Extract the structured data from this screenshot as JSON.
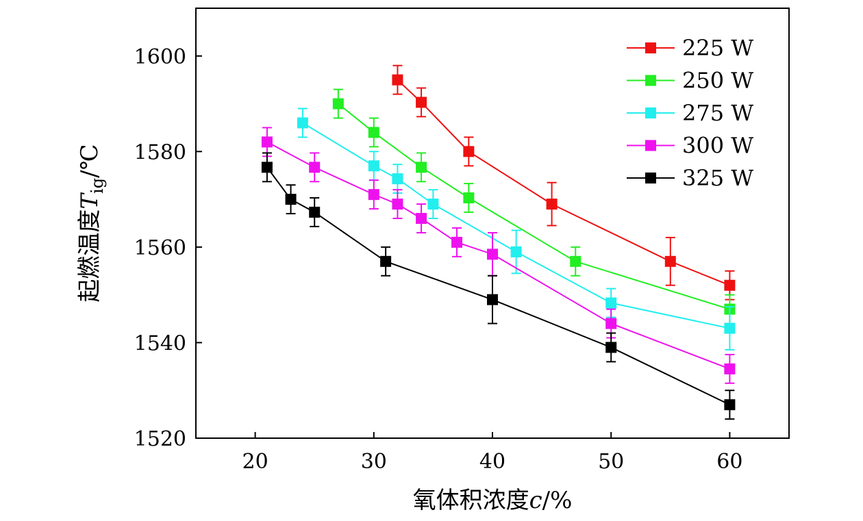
{
  "chart_data": {
    "type": "line",
    "title": "",
    "xlabel": "氧体积浓度c/%",
    "ylabel": "起燃温度T_ig/℃",
    "xlabel_parts": {
      "prefix": "氧体积浓度",
      "var": "c",
      "suffix": "/%"
    },
    "ylabel_parts": {
      "prefix": "起燃温度",
      "var": "T",
      "sub": "ig",
      "suffix": "/℃"
    },
    "xlim": [
      15,
      65
    ],
    "ylim": [
      1520,
      1610
    ],
    "xticks": [
      20,
      30,
      40,
      50,
      60
    ],
    "yticks": [
      1520,
      1540,
      1560,
      1580,
      1600
    ],
    "grid": false,
    "legend_position": "top-right",
    "series": [
      {
        "name": "225 W",
        "color": "#ee1111",
        "x": [
          32,
          34,
          38,
          45,
          55,
          60
        ],
        "y": [
          1595,
          1590.3,
          1580,
          1569,
          1557,
          1552
        ],
        "err": [
          3,
          3,
          3,
          4.5,
          5,
          3
        ]
      },
      {
        "name": "250 W",
        "color": "#22ee22",
        "x": [
          27,
          30,
          34,
          38,
          47,
          60
        ],
        "y": [
          1590,
          1584,
          1576.7,
          1570.3,
          1557,
          1547
        ],
        "err": [
          3,
          3,
          3,
          3,
          3,
          3
        ]
      },
      {
        "name": "275 W",
        "color": "#22eeee",
        "x": [
          24,
          30,
          32,
          35,
          42,
          50,
          60
        ],
        "y": [
          1586,
          1577,
          1574.3,
          1569,
          1559,
          1548.3,
          1543
        ],
        "err": [
          3,
          3,
          3,
          3,
          4.5,
          3,
          4.5
        ]
      },
      {
        "name": "300 W",
        "color": "#ee11ee",
        "x": [
          21,
          25,
          30,
          32,
          34,
          37,
          40,
          50,
          60
        ],
        "y": [
          1582,
          1576.7,
          1571,
          1569,
          1566,
          1561,
          1558.5,
          1544,
          1534.5
        ],
        "err": [
          3,
          3,
          3,
          3,
          3,
          3,
          4.5,
          3,
          3
        ]
      },
      {
        "name": "325 W",
        "color": "#000000",
        "x": [
          21,
          23,
          25,
          31,
          40,
          50,
          60
        ],
        "y": [
          1576.7,
          1570,
          1567.3,
          1557,
          1549,
          1539,
          1527
        ],
        "err": [
          3,
          3,
          3,
          3,
          5,
          3,
          3
        ]
      }
    ]
  }
}
